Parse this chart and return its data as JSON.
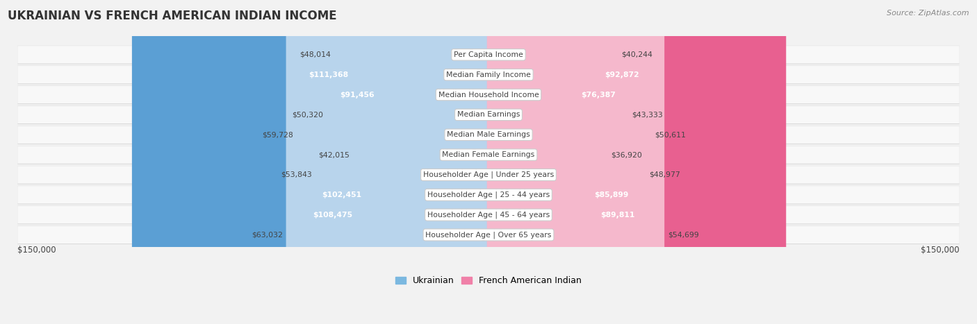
{
  "title": "UKRAINIAN VS FRENCH AMERICAN INDIAN INCOME",
  "source": "Source: ZipAtlas.com",
  "categories": [
    "Per Capita Income",
    "Median Family Income",
    "Median Household Income",
    "Median Earnings",
    "Median Male Earnings",
    "Median Female Earnings",
    "Householder Age | Under 25 years",
    "Householder Age | 25 - 44 years",
    "Householder Age | 45 - 64 years",
    "Householder Age | Over 65 years"
  ],
  "ukrainian_values": [
    48014,
    111368,
    91456,
    50320,
    59728,
    42015,
    53843,
    102451,
    108475,
    63032
  ],
  "french_values": [
    40244,
    92872,
    76387,
    43333,
    50611,
    36920,
    48977,
    85899,
    89811,
    54699
  ],
  "ukrainian_labels": [
    "$48,014",
    "$111,368",
    "$91,456",
    "$50,320",
    "$59,728",
    "$42,015",
    "$53,843",
    "$102,451",
    "$108,475",
    "$63,032"
  ],
  "french_labels": [
    "$40,244",
    "$92,872",
    "$76,387",
    "$43,333",
    "$50,611",
    "$36,920",
    "$48,977",
    "$85,899",
    "$89,811",
    "$54,699"
  ],
  "max_value": 150000,
  "ukrainian_color_light": "#b8d4ec",
  "ukrainian_color_dark": "#5b9fd4",
  "french_color_light": "#f5b8cc",
  "french_color_dark": "#e86090",
  "ukrainian_legend_color": "#7bb8e0",
  "french_legend_color": "#f080a8",
  "background_color": "#f2f2f2",
  "row_bg_light": "#f8f8f8",
  "row_bg_shadow": "#d8d8d8",
  "label_box_color": "#ffffff",
  "label_box_edge": "#cccccc",
  "text_color_dark": "#444444",
  "text_color_white": "#ffffff",
  "dark_threshold": 75000,
  "xlabel_left": "$150,000",
  "xlabel_right": "$150,000",
  "legend_label_ukr": "Ukrainian",
  "legend_label_fra": "French American Indian"
}
